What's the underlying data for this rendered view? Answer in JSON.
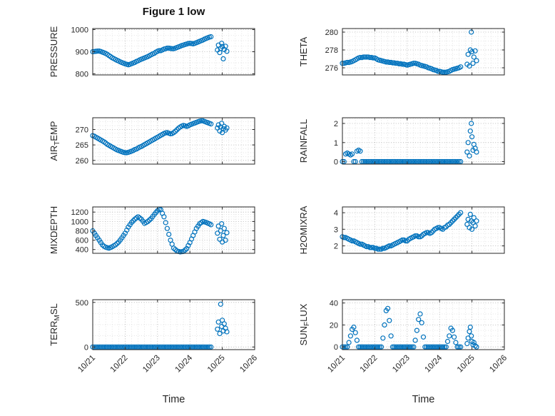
{
  "figure": {
    "marker_color": "#0072BD",
    "axis_color": "#262626",
    "grid_color": "#aeaeae",
    "minor_grid_color": "#d9d9d9",
    "background": "#ffffff"
  },
  "chart_data": {
    "type": "scatter",
    "title": "Figure 1 low",
    "xlabel": "Time",
    "marker": "o",
    "grid": "on",
    "minor_grid": "on",
    "xlim_days": [
      0,
      5
    ],
    "x_ticks_days": [
      0,
      1,
      2,
      3,
      4,
      5
    ],
    "x_tick_labels": [
      "10/21",
      "10/22",
      "10/23",
      "10/24",
      "10/25",
      "10/26"
    ],
    "x_minor_step_days": 0.2,
    "x_days": [
      0,
      0.05,
      0.1,
      0.15,
      0.2,
      0.25,
      0.3,
      0.35,
      0.4,
      0.45,
      0.5,
      0.55,
      0.6,
      0.65,
      0.7,
      0.75,
      0.8,
      0.85,
      0.9,
      0.95,
      1,
      1.05,
      1.1,
      1.15,
      1.2,
      1.25,
      1.3,
      1.35,
      1.4,
      1.45,
      1.5,
      1.55,
      1.6,
      1.65,
      1.7,
      1.75,
      1.8,
      1.85,
      1.9,
      1.95,
      2,
      2.05,
      2.1,
      2.15,
      2.2,
      2.25,
      2.3,
      2.35,
      2.4,
      2.45,
      2.5,
      2.55,
      2.6,
      2.65,
      2.7,
      2.75,
      2.8,
      2.85,
      2.9,
      2.95,
      3,
      3.05,
      3.1,
      3.15,
      3.2,
      3.25,
      3.3,
      3.35,
      3.4,
      3.45,
      3.5,
      3.55,
      3.6,
      3.65,
      3.85,
      3.88,
      3.92,
      3.95,
      3.98,
      4,
      4.03,
      4.06,
      4.1,
      4.14
    ],
    "panels": [
      {
        "name": "pressure",
        "ylabel": "PRESSURE",
        "ylim": [
          795,
          1005
        ],
        "yticks": [
          800,
          900,
          1000
        ],
        "y_minor_step": 25,
        "show_xticklabels": false,
        "y": [
          900,
          901,
          902,
          903,
          903,
          901,
          898,
          895,
          892,
          888,
          883,
          878,
          873,
          869,
          865,
          861,
          858,
          854,
          851,
          848,
          845,
          843,
          841,
          843,
          846,
          849,
          852,
          856,
          859,
          863,
          866,
          869,
          872,
          875,
          878,
          882,
          886,
          890,
          893,
          898,
          902,
          905,
          905,
          908,
          912,
          914,
          916,
          916,
          915,
          914,
          914,
          916,
          919,
          922,
          925,
          928,
          930,
          933,
          935,
          937,
          938,
          937,
          936,
          938,
          941,
          944,
          947,
          950,
          953,
          957,
          960,
          963,
          966,
          968,
          908,
          930,
          896,
          915,
          938,
          923,
          868,
          910,
          925,
          902
        ]
      },
      {
        "name": "theta",
        "ylabel": "THETA",
        "ylim": [
          275.2,
          280.4
        ],
        "yticks": [
          276,
          278,
          280
        ],
        "y_minor_step": 0.5,
        "show_xticklabels": false,
        "y": [
          276.5,
          276.5,
          276.55,
          276.6,
          276.6,
          276.65,
          276.7,
          276.8,
          276.9,
          277,
          277.1,
          277.15,
          277.15,
          277.2,
          277.2,
          277.2,
          277.2,
          277.15,
          277.15,
          277.1,
          277.1,
          277,
          276.9,
          276.85,
          276.8,
          276.75,
          276.7,
          276.65,
          276.65,
          276.6,
          276.6,
          276.55,
          276.55,
          276.5,
          276.5,
          276.45,
          276.45,
          276.4,
          276.4,
          276.35,
          276.3,
          276.35,
          276.4,
          276.45,
          276.5,
          276.5,
          276.45,
          276.4,
          276.3,
          276.25,
          276.2,
          276.15,
          276.1,
          276,
          275.95,
          275.9,
          275.8,
          275.75,
          275.7,
          275.6,
          275.6,
          275.55,
          275.5,
          275.5,
          275.5,
          275.55,
          275.6,
          275.7,
          275.8,
          275.85,
          275.9,
          275.95,
          276,
          276.1,
          276.4,
          277.5,
          276.2,
          278,
          280,
          277.8,
          276.5,
          277.2,
          277.9,
          276.8
        ]
      },
      {
        "name": "air_temp",
        "ylabel": "AIR_TEMP",
        "ylim": [
          258.8,
          273.8
        ],
        "yticks": [
          260,
          265,
          270
        ],
        "y_minor_step": 1.25,
        "show_xticklabels": false,
        "y": [
          268,
          267.8,
          267.5,
          267.2,
          266.9,
          266.6,
          266.3,
          266,
          265.6,
          265.2,
          264.9,
          264.6,
          264.3,
          264,
          263.7,
          263.4,
          263.2,
          263,
          262.8,
          262.6,
          262.5,
          262.5,
          262.6,
          262.8,
          263,
          263.2,
          263.5,
          263.7,
          264,
          264.3,
          264.5,
          264.8,
          265.1,
          265.4,
          265.7,
          266,
          266.3,
          266.6,
          266.9,
          267.2,
          267.5,
          267.8,
          268.1,
          268.4,
          268.7,
          268.9,
          269,
          268.8,
          268.6,
          268.7,
          269,
          269.4,
          269.9,
          270.4,
          270.8,
          271.1,
          271.3,
          271.2,
          271,
          271.2,
          271.5,
          271.7,
          271.9,
          272.1,
          272.3,
          272.5,
          272.7,
          272.8,
          272.8,
          272.6,
          272.4,
          272.2,
          272,
          271.8,
          270.5,
          271.5,
          269.5,
          270.8,
          272,
          269,
          270.2,
          271,
          269.8,
          270.5
        ]
      },
      {
        "name": "rainfall",
        "ylabel": "RAINFALL",
        "ylim": [
          -0.13,
          2.3
        ],
        "yticks": [
          0,
          1,
          2
        ],
        "y_minor_step": 0.25,
        "show_xticklabels": false,
        "y": [
          0,
          0,
          0.4,
          0.45,
          0.4,
          0.35,
          0.4,
          0,
          0,
          0.55,
          0.6,
          0.55,
          0,
          0,
          0,
          0,
          0,
          0,
          0,
          0,
          0,
          0,
          0,
          0,
          0,
          0,
          0,
          0,
          0,
          0,
          0,
          0,
          0,
          0,
          0,
          0,
          0,
          0,
          0,
          0,
          0,
          0,
          0,
          0,
          0,
          0,
          0,
          0,
          0,
          0,
          0,
          0,
          0,
          0,
          0,
          0,
          0,
          0,
          0,
          0,
          0,
          0,
          0,
          0,
          0,
          0,
          0,
          0,
          0,
          0,
          0,
          0,
          0,
          0,
          0.5,
          1,
          0.3,
          1.6,
          2,
          1.3,
          0.6,
          0.9,
          0.7,
          0.5
        ]
      },
      {
        "name": "mixdepth",
        "ylabel": "MIXDEPTH",
        "ylim": [
          320,
          1310
        ],
        "yticks": [
          400,
          600,
          800,
          1000,
          1200
        ],
        "y_minor_step": 50,
        "show_xticklabels": false,
        "y": [
          800,
          750,
          700,
          650,
          600,
          550,
          500,
          470,
          450,
          440,
          430,
          445,
          460,
          480,
          500,
          530,
          560,
          605,
          650,
          700,
          750,
          815,
          880,
          930,
          980,
          1015,
          1050,
          1075,
          1100,
          1075,
          1050,
          1005,
          960,
          980,
          1000,
          1030,
          1060,
          1105,
          1150,
          1190,
          1230,
          1260,
          1250,
          1175,
          1100,
          975,
          850,
          725,
          600,
          515,
          430,
          400,
          370,
          360,
          350,
          355,
          360,
          390,
          420,
          485,
          550,
          625,
          700,
          775,
          850,
          900,
          950,
          975,
          1000,
          990,
          980,
          965,
          950,
          930,
          750,
          900,
          620,
          800,
          950,
          560,
          700,
          850,
          600,
          760
        ]
      },
      {
        "name": "h2omixra",
        "ylabel": "H2OMIXRA",
        "ylim": [
          1.55,
          4.35
        ],
        "yticks": [
          2,
          3,
          4
        ],
        "y_minor_step": 0.25,
        "show_xticklabels": false,
        "y": [
          2.55,
          2.5,
          2.5,
          2.45,
          2.4,
          2.35,
          2.3,
          2.3,
          2.25,
          2.2,
          2.15,
          2.1,
          2.1,
          2.05,
          2,
          1.95,
          1.95,
          1.9,
          1.9,
          1.9,
          1.85,
          1.85,
          1.8,
          1.8,
          1.8,
          1.85,
          1.85,
          1.9,
          1.95,
          2,
          2,
          2.05,
          2.1,
          2.15,
          2.2,
          2.25,
          2.3,
          2.35,
          2.35,
          2.3,
          2.3,
          2.4,
          2.45,
          2.5,
          2.55,
          2.6,
          2.6,
          2.55,
          2.55,
          2.6,
          2.7,
          2.75,
          2.8,
          2.8,
          2.75,
          2.8,
          2.9,
          3,
          3.05,
          3.1,
          3.1,
          3.05,
          3,
          3.1,
          3.15,
          3.25,
          3.3,
          3.4,
          3.5,
          3.6,
          3.7,
          3.8,
          3.9,
          4,
          3.3,
          3.6,
          3.1,
          3.9,
          3.5,
          3,
          3.4,
          3.7,
          3.2,
          3.5
        ]
      },
      {
        "name": "terr_msl",
        "ylabel": "TERR_MSL",
        "ylim": [
          -30,
          530
        ],
        "yticks": [
          0,
          500
        ],
        "y_minor_step": 125,
        "show_xticklabels": true,
        "y": [
          0,
          0,
          0,
          0,
          0,
          0,
          0,
          0,
          0,
          0,
          0,
          0,
          0,
          0,
          0,
          0,
          0,
          0,
          0,
          0,
          0,
          0,
          0,
          0,
          0,
          0,
          0,
          0,
          0,
          0,
          0,
          0,
          0,
          0,
          0,
          0,
          0,
          0,
          0,
          0,
          0,
          0,
          0,
          0,
          0,
          0,
          0,
          0,
          0,
          0,
          0,
          0,
          0,
          0,
          0,
          0,
          0,
          0,
          0,
          0,
          0,
          0,
          0,
          0,
          0,
          0,
          0,
          0,
          0,
          0,
          0,
          0,
          0,
          0,
          200,
          280,
          150,
          480,
          230,
          300,
          180,
          260,
          210,
          170
        ]
      },
      {
        "name": "sun_flux",
        "ylabel": "SUN_FLUX",
        "ylim": [
          -2.5,
          43
        ],
        "yticks": [
          0,
          20,
          40
        ],
        "y_minor_step": 5,
        "show_xticklabels": true,
        "y": [
          0,
          0,
          0,
          0,
          4,
          10,
          16,
          18,
          13,
          6,
          0,
          0,
          0,
          0,
          0,
          0,
          0,
          0,
          0,
          0,
          0,
          0,
          0,
          0,
          0,
          8,
          20,
          33,
          35,
          24,
          10,
          0,
          0,
          0,
          0,
          0,
          0,
          0,
          0,
          0,
          0,
          0,
          0,
          0,
          0,
          6,
          15,
          25,
          30,
          22,
          9,
          0,
          0,
          0,
          0,
          0,
          0,
          0,
          0,
          0,
          0,
          0,
          0,
          0,
          0,
          5,
          10,
          17,
          15,
          9,
          4,
          0,
          0,
          0,
          3,
          8,
          14,
          18,
          10,
          5,
          2,
          4,
          1,
          0
        ]
      }
    ]
  }
}
